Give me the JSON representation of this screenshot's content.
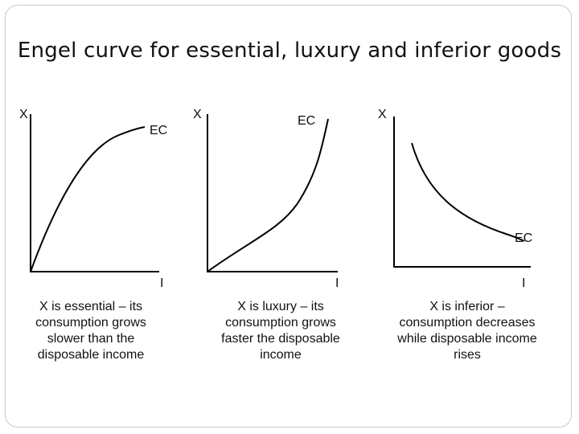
{
  "title": "Engel curve for essential, luxury and inferior goods",
  "panels": [
    {
      "y_label": "X",
      "curve_label": "EC",
      "x_label": "I",
      "caption_lines": [
        "X is essential – its",
        "consumption grows",
        "slower than the",
        "disposable income"
      ]
    },
    {
      "y_label": "X",
      "curve_label": "EC",
      "x_label": "I",
      "caption_lines": [
        "X is luxury – its",
        "consumption grows",
        "faster the disposable",
        "income"
      ]
    },
    {
      "y_label": "X",
      "curve_label": "EC",
      "x_label": "I",
      "caption_lines": [
        "X is inferior –",
        "consumption decreases",
        "while disposable income",
        "rises"
      ]
    }
  ]
}
